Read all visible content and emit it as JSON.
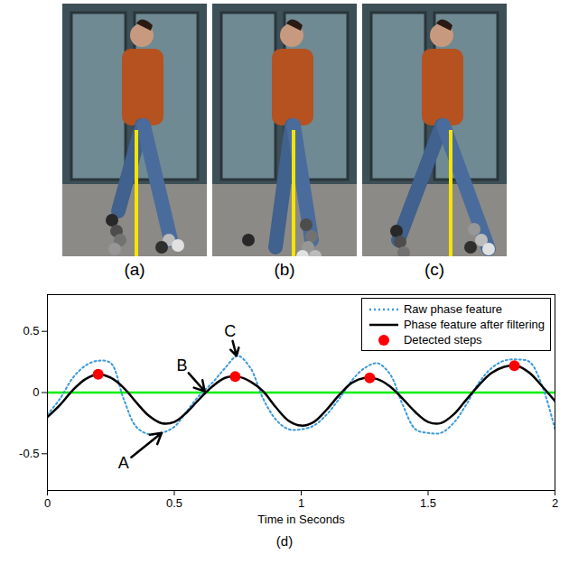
{
  "panels": [
    {
      "label": "(a)"
    },
    {
      "label": "(b)"
    },
    {
      "label": "(c)"
    }
  ],
  "chart_data": {
    "type": "line",
    "caption": "(d)",
    "x_label": "Time in Seconds",
    "xlim": [
      0,
      2
    ],
    "xticks": [
      0,
      0.5,
      1,
      1.5,
      2
    ],
    "ylim": [
      -0.8,
      0.8
    ],
    "yticks": [
      -0.5,
      0,
      0.5
    ],
    "legend": "upper right",
    "x": [
      0,
      0.05,
      0.1,
      0.15,
      0.2,
      0.25,
      0.3,
      0.35,
      0.4,
      0.45,
      0.5,
      0.55,
      0.6,
      0.65,
      0.7,
      0.75,
      0.8,
      0.85,
      0.9,
      0.95,
      1,
      1.05,
      1.1,
      1.15,
      1.2,
      1.25,
      1.3,
      1.35,
      1.4,
      1.45,
      1.5,
      1.55,
      1.6,
      1.65,
      1.7,
      1.75,
      1.8,
      1.85,
      1.9,
      1.95,
      2
    ],
    "series": [
      {
        "name": "Raw phase feature",
        "color": "#3a9ad9",
        "line_style": "dotted",
        "values": [
          -0.18,
          -0.05,
          0.12,
          0.22,
          0.26,
          0.24,
          -0.05,
          -0.28,
          -0.34,
          -0.33,
          -0.28,
          -0.15,
          -0.02,
          0.08,
          0.2,
          0.3,
          0.2,
          -0.05,
          -0.22,
          -0.3,
          -0.3,
          -0.27,
          -0.18,
          -0.05,
          0.1,
          0.2,
          0.24,
          0.15,
          -0.1,
          -0.3,
          -0.33,
          -0.33,
          -0.25,
          -0.1,
          0.08,
          0.2,
          0.26,
          0.27,
          0.25,
          0.05,
          -0.3
        ]
      },
      {
        "name": "Phase feature after filtering",
        "color": "#000000",
        "line_style": "solid",
        "values": [
          -0.2,
          -0.1,
          0.02,
          0.11,
          0.15,
          0.12,
          0.04,
          -0.08,
          -0.19,
          -0.25,
          -0.24,
          -0.16,
          -0.05,
          0.05,
          0.12,
          0.13,
          0.09,
          0.01,
          -0.12,
          -0.23,
          -0.27,
          -0.24,
          -0.14,
          -0.02,
          0.08,
          0.12,
          0.11,
          0.05,
          -0.05,
          -0.16,
          -0.24,
          -0.25,
          -0.18,
          -0.06,
          0.06,
          0.16,
          0.21,
          0.22,
          0.16,
          0.05,
          -0.07
        ]
      },
      {
        "name": "Detected steps",
        "type": "scatter",
        "color": "#ff0000",
        "marker": "circle",
        "x": [
          0.2,
          0.74,
          1.27,
          1.84
        ],
        "values": [
          0.15,
          0.13,
          0.12,
          0.22
        ]
      }
    ],
    "reference_lines": [
      {
        "y": 0,
        "color": "#00ee00"
      }
    ],
    "annotations": [
      {
        "text": "A",
        "x": 0.45,
        "y": -0.33,
        "text_x": 0.3,
        "text_y": -0.58
      },
      {
        "text": "B",
        "x": 0.62,
        "y": 0.01,
        "text_x": 0.53,
        "text_y": 0.22
      },
      {
        "text": "C",
        "x": 0.745,
        "y": 0.3,
        "text_x": 0.72,
        "text_y": 0.5
      }
    ]
  }
}
